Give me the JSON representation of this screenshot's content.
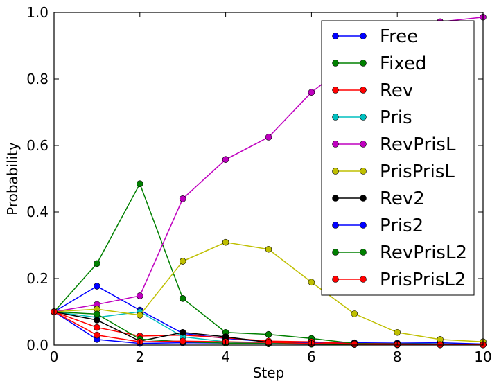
{
  "chart_data": {
    "type": "line",
    "title": "",
    "xlabel": "Step",
    "ylabel": "Probability",
    "xlim": [
      0,
      10
    ],
    "ylim": [
      0,
      1.0
    ],
    "xticks": [
      "0",
      "2",
      "4",
      "6",
      "8",
      "10"
    ],
    "yticks": [
      "0.0",
      "0.2",
      "0.4",
      "0.6",
      "0.8",
      "1.0"
    ],
    "grid": false,
    "legend_position": "top-right",
    "x": [
      0,
      1,
      2,
      3,
      4,
      5,
      6,
      7,
      8,
      9,
      10
    ],
    "series": [
      {
        "name": "Free",
        "color": "#0000ff",
        "values": [
          0.1,
          0.177,
          0.105,
          0.035,
          0.02,
          0.01,
          0.008,
          0.007,
          0.006,
          0.007,
          0.003
        ]
      },
      {
        "name": "Fixed",
        "color": "#008000",
        "values": [
          0.1,
          0.245,
          0.485,
          0.14,
          0.038,
          0.032,
          0.02,
          0.005,
          0.004,
          0.003,
          0.002
        ]
      },
      {
        "name": "Rev",
        "color": "#ff0000",
        "values": [
          0.1,
          0.053,
          0.027,
          0.03,
          0.022,
          0.012,
          0.01,
          0.004,
          0.003,
          0.002,
          0.001
        ]
      },
      {
        "name": "Pris",
        "color": "#00bfbf",
        "values": [
          0.1,
          0.083,
          0.1,
          0.025,
          0.01,
          0.006,
          0.004,
          0.003,
          0.002,
          0.002,
          0.001
        ]
      },
      {
        "name": "RevPrisL",
        "color": "#bf00bf",
        "values": [
          0.1,
          0.122,
          0.148,
          0.44,
          0.558,
          0.625,
          0.76,
          0.86,
          0.93,
          0.972,
          0.986
        ]
      },
      {
        "name": "PrisPrisL",
        "color": "#bfbf00",
        "values": [
          0.1,
          0.108,
          0.09,
          0.252,
          0.309,
          0.288,
          0.189,
          0.094,
          0.038,
          0.017,
          0.01
        ]
      },
      {
        "name": "Rev2",
        "color": "#000000",
        "values": [
          0.1,
          0.075,
          0.012,
          0.038,
          0.025,
          0.008,
          0.005,
          0.003,
          0.002,
          0.001,
          0.001
        ]
      },
      {
        "name": "Pris2",
        "color": "#0000ff",
        "values": [
          0.1,
          0.017,
          0.005,
          0.007,
          0.006,
          0.004,
          0.003,
          0.002,
          0.001,
          0.001,
          0.001
        ]
      },
      {
        "name": "RevPrisL2",
        "color": "#008000",
        "values": [
          0.1,
          0.093,
          0.018,
          0.01,
          0.006,
          0.004,
          0.003,
          0.002,
          0.001,
          0.001,
          0.001
        ]
      },
      {
        "name": "PrisPrisL2",
        "color": "#ff0000",
        "values": [
          0.1,
          0.03,
          0.01,
          0.012,
          0.01,
          0.008,
          0.005,
          0.003,
          0.002,
          0.001,
          0.001
        ]
      }
    ]
  }
}
